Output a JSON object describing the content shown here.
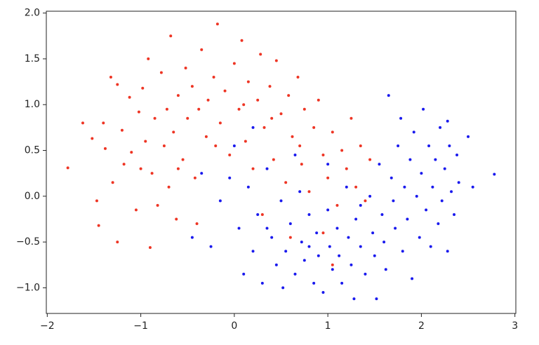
{
  "chart_data": {
    "type": "scatter",
    "xlim": [
      -2.01,
      3.01
    ],
    "ylim": [
      -1.28,
      2.02
    ],
    "xticks": [
      {
        "value": -2,
        "label": "−2"
      },
      {
        "value": -1,
        "label": "−1"
      },
      0,
      1,
      2,
      3
    ],
    "yticks": [
      {
        "value": -1,
        "label": "−1.0"
      },
      {
        "value": -0.5,
        "label": "−0.5"
      },
      {
        "value": 0,
        "label": "0.0"
      },
      {
        "value": 0.5,
        "label": "0.5"
      },
      {
        "value": 1,
        "label": "1.0"
      },
      {
        "value": 1.5,
        "label": "1.5"
      },
      {
        "value": 2,
        "label": "2.0"
      }
    ],
    "series": [
      {
        "color": "#ee3524",
        "x": [
          -1.62,
          -1.78,
          -1.52,
          -1.47,
          -1.45,
          -1.38,
          -1.32,
          -1.25,
          -1.3,
          -1.2,
          -1.18,
          -1.12,
          -1.1,
          -1.05,
          -1.02,
          -0.98,
          -0.95,
          -0.92,
          -0.9,
          -0.88,
          -0.85,
          -0.82,
          -0.78,
          -0.75,
          -0.72,
          -0.7,
          -0.68,
          -0.65,
          -0.62,
          -0.6,
          -0.55,
          -0.52,
          -0.5,
          -0.45,
          -0.42,
          -0.38,
          -0.35,
          -0.3,
          -0.28,
          -0.22,
          -0.18,
          -0.15,
          -0.1,
          -0.05,
          0.0,
          0.05,
          0.08,
          0.12,
          0.15,
          0.2,
          0.25,
          0.28,
          0.32,
          0.38,
          0.42,
          0.45,
          0.5,
          0.55,
          0.58,
          0.62,
          0.68,
          0.72,
          0.75,
          0.8,
          0.85,
          0.9,
          0.95,
          1.0,
          1.05,
          1.1,
          1.15,
          1.2,
          1.25,
          1.3,
          1.35,
          1.4,
          1.45,
          0.3,
          0.6,
          1.05,
          0.95,
          -0.4,
          -1.25,
          -1.4,
          0.7,
          0.1,
          -0.2,
          0.4,
          -0.6,
          -1.0
        ],
        "y": [
          0.8,
          0.31,
          0.63,
          -0.05,
          -0.32,
          0.52,
          1.3,
          1.22,
          0.15,
          0.72,
          0.35,
          1.08,
          0.48,
          -0.15,
          0.92,
          1.18,
          0.6,
          1.5,
          -0.56,
          0.25,
          0.85,
          -0.1,
          1.35,
          0.55,
          0.95,
          0.1,
          1.75,
          0.7,
          -0.25,
          1.1,
          0.4,
          1.4,
          0.85,
          1.2,
          0.2,
          0.95,
          1.6,
          0.65,
          1.05,
          1.3,
          1.88,
          0.8,
          1.15,
          0.45,
          1.45,
          0.95,
          1.7,
          0.6,
          1.25,
          0.3,
          1.05,
          1.55,
          0.75,
          1.2,
          0.4,
          1.48,
          0.9,
          0.15,
          1.1,
          0.65,
          1.3,
          0.35,
          0.95,
          0.05,
          0.75,
          1.05,
          0.45,
          0.2,
          0.7,
          -0.1,
          0.5,
          0.3,
          0.85,
          0.1,
          0.55,
          -0.05,
          0.4,
          -0.2,
          -0.45,
          -0.75,
          -0.4,
          -0.3,
          -0.5,
          0.8,
          0.55,
          1.0,
          0.55,
          0.85,
          0.3,
          0.3
        ]
      },
      {
        "color": "#1a1aee",
        "x": [
          -0.05,
          -0.15,
          0.05,
          -0.25,
          0.1,
          0.0,
          0.15,
          0.2,
          0.25,
          0.3,
          0.35,
          0.4,
          0.45,
          0.5,
          0.52,
          0.55,
          0.6,
          0.65,
          0.7,
          0.72,
          0.75,
          0.8,
          0.85,
          0.88,
          0.9,
          0.95,
          1.0,
          1.02,
          1.05,
          1.1,
          1.12,
          1.15,
          1.2,
          1.22,
          1.25,
          1.28,
          1.3,
          1.35,
          1.4,
          1.45,
          1.48,
          1.5,
          1.52,
          1.55,
          1.58,
          1.6,
          1.62,
          1.65,
          1.68,
          1.7,
          1.72,
          1.75,
          1.78,
          1.8,
          1.82,
          1.85,
          1.88,
          1.9,
          1.92,
          1.95,
          1.98,
          2.0,
          2.02,
          2.05,
          2.08,
          2.1,
          2.12,
          2.15,
          2.18,
          2.2,
          2.22,
          2.25,
          2.28,
          2.3,
          2.32,
          2.35,
          2.38,
          2.4,
          2.5,
          2.55,
          2.78,
          2.28,
          0.2,
          -0.45,
          -0.35,
          0.65,
          1.0,
          0.35,
          0.8,
          1.35
        ],
        "y": [
          0.2,
          -0.05,
          -0.35,
          -0.55,
          -0.85,
          0.55,
          0.1,
          -0.6,
          -0.2,
          -0.95,
          0.3,
          -0.45,
          -0.75,
          -0.05,
          -1.0,
          -0.6,
          -0.3,
          -0.85,
          0.05,
          -0.5,
          -0.7,
          -0.2,
          -0.95,
          -0.4,
          -0.65,
          -1.05,
          -0.15,
          -0.55,
          -0.8,
          -0.35,
          -0.65,
          -0.95,
          0.1,
          -0.45,
          -0.75,
          -1.12,
          -0.25,
          -0.55,
          -0.85,
          0.0,
          -0.4,
          -0.65,
          -1.12,
          0.35,
          -0.2,
          -0.5,
          -0.8,
          1.1,
          0.2,
          -0.05,
          -0.35,
          0.55,
          0.85,
          -0.6,
          0.1,
          -0.25,
          0.4,
          -0.9,
          0.7,
          0.0,
          -0.45,
          0.25,
          0.95,
          -0.15,
          0.55,
          -0.55,
          0.1,
          0.4,
          -0.3,
          0.75,
          -0.05,
          0.3,
          -0.6,
          0.55,
          0.05,
          -0.2,
          0.45,
          0.15,
          0.65,
          0.1,
          0.24,
          0.82,
          0.75,
          -0.45,
          0.25,
          0.45,
          0.35,
          -0.35,
          -0.55,
          -0.1
        ]
      }
    ]
  }
}
